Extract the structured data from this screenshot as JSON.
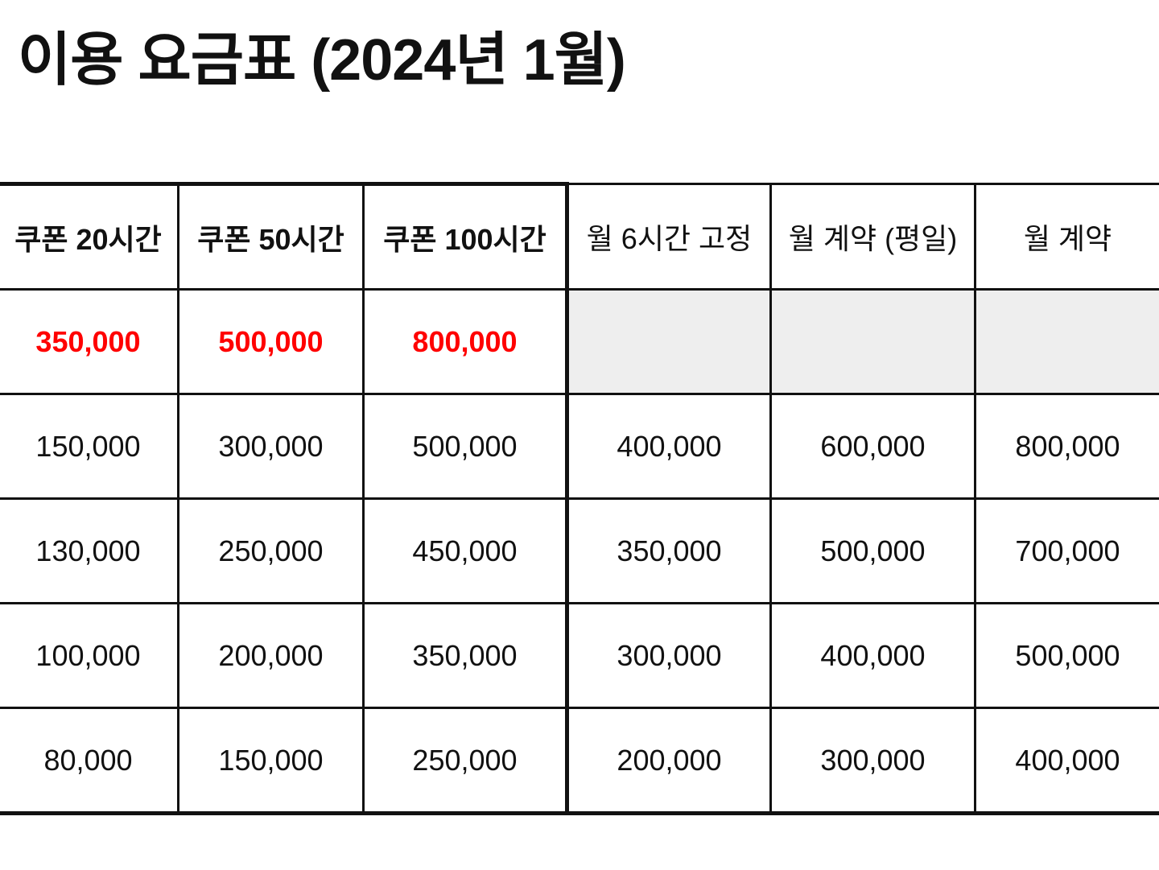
{
  "title": "이용 요금표 (2024년 1월)",
  "table": {
    "headers": [
      "쿠폰 20시간",
      "쿠폰 50시간",
      "쿠폰 100시간",
      "월 6시간 고정",
      "월 계약 (평일)",
      "월 계약"
    ],
    "highlight_row": [
      "350,000",
      "500,000",
      "800,000"
    ],
    "rows": [
      [
        "150,000",
        "300,000",
        "500,000",
        "400,000",
        "600,000",
        "800,000"
      ],
      [
        "130,000",
        "250,000",
        "450,000",
        "350,000",
        "500,000",
        "700,000"
      ],
      [
        "100,000",
        "200,000",
        "350,000",
        "300,000",
        "400,000",
        "500,000"
      ],
      [
        "80,000",
        "150,000",
        "250,000",
        "200,000",
        "300,000",
        "400,000"
      ]
    ]
  },
  "colors": {
    "highlight_text": "#ff0000",
    "shaded_cell": "#eeeeee",
    "border": "#111111"
  }
}
